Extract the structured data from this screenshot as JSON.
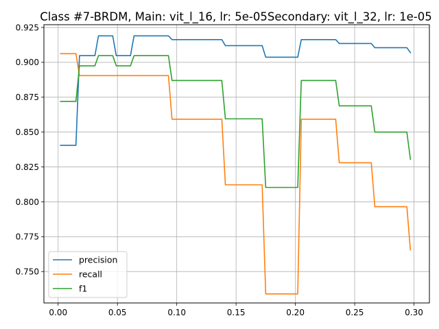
{
  "chart_data": {
    "type": "line",
    "title": "Class #7-BRDM, Main: vit_l_16, lr: 5e-05Secondary: vit_l_32, lr: 1e-05",
    "xlabel": "",
    "ylabel": "",
    "xlim": [
      -0.012,
      0.313
    ],
    "ylim": [
      0.7275,
      0.927
    ],
    "xticks": [
      0.0,
      0.05,
      0.1,
      0.15,
      0.2,
      0.25,
      0.3
    ],
    "xtick_labels": [
      "0.00",
      "0.05",
      "0.10",
      "0.15",
      "0.20",
      "0.25",
      "0.30"
    ],
    "yticks": [
      0.75,
      0.775,
      0.8,
      0.825,
      0.85,
      0.875,
      0.9,
      0.925
    ],
    "ytick_labels": [
      "0.750",
      "0.775",
      "0.800",
      "0.825",
      "0.850",
      "0.875",
      "0.900",
      "0.925"
    ],
    "grid": true,
    "legend_position": "lower-left",
    "series": [
      {
        "name": "precision",
        "color": "#1f77b4",
        "points": [
          [
            0.002,
            0.8405
          ],
          [
            0.015,
            0.8405
          ],
          [
            0.018,
            0.9048
          ],
          [
            0.031,
            0.9048
          ],
          [
            0.034,
            0.919
          ],
          [
            0.046,
            0.919
          ],
          [
            0.049,
            0.9048
          ],
          [
            0.061,
            0.9048
          ],
          [
            0.064,
            0.919
          ],
          [
            0.093,
            0.919
          ],
          [
            0.096,
            0.9163
          ],
          [
            0.138,
            0.9163
          ],
          [
            0.141,
            0.912
          ],
          [
            0.172,
            0.912
          ],
          [
            0.175,
            0.9037
          ],
          [
            0.202,
            0.9037
          ],
          [
            0.205,
            0.9163
          ],
          [
            0.234,
            0.9163
          ],
          [
            0.237,
            0.9135
          ],
          [
            0.264,
            0.9135
          ],
          [
            0.267,
            0.9105
          ],
          [
            0.294,
            0.9105
          ],
          [
            0.297,
            0.907
          ]
        ]
      },
      {
        "name": "recall",
        "color": "#ff7f0e",
        "points": [
          [
            0.002,
            0.9062
          ],
          [
            0.015,
            0.9062
          ],
          [
            0.018,
            0.8905
          ],
          [
            0.093,
            0.8905
          ],
          [
            0.096,
            0.8592
          ],
          [
            0.138,
            0.8592
          ],
          [
            0.141,
            0.8122
          ],
          [
            0.172,
            0.8122
          ],
          [
            0.175,
            0.734
          ],
          [
            0.202,
            0.734
          ],
          [
            0.205,
            0.8592
          ],
          [
            0.234,
            0.8592
          ],
          [
            0.237,
            0.828
          ],
          [
            0.264,
            0.828
          ],
          [
            0.267,
            0.7965
          ],
          [
            0.294,
            0.7965
          ],
          [
            0.297,
            0.7655
          ]
        ]
      },
      {
        "name": "f1",
        "color": "#2ca02c",
        "points": [
          [
            0.002,
            0.872
          ],
          [
            0.015,
            0.872
          ],
          [
            0.018,
            0.8975
          ],
          [
            0.031,
            0.8975
          ],
          [
            0.034,
            0.9048
          ],
          [
            0.046,
            0.9048
          ],
          [
            0.049,
            0.8975
          ],
          [
            0.061,
            0.8975
          ],
          [
            0.064,
            0.9048
          ],
          [
            0.093,
            0.9048
          ],
          [
            0.096,
            0.887
          ],
          [
            0.138,
            0.887
          ],
          [
            0.141,
            0.8595
          ],
          [
            0.172,
            0.8595
          ],
          [
            0.175,
            0.8103
          ],
          [
            0.202,
            0.8103
          ],
          [
            0.205,
            0.887
          ],
          [
            0.234,
            0.887
          ],
          [
            0.237,
            0.8688
          ],
          [
            0.264,
            0.8688
          ],
          [
            0.267,
            0.85
          ],
          [
            0.294,
            0.85
          ],
          [
            0.297,
            0.8305
          ]
        ]
      }
    ]
  }
}
